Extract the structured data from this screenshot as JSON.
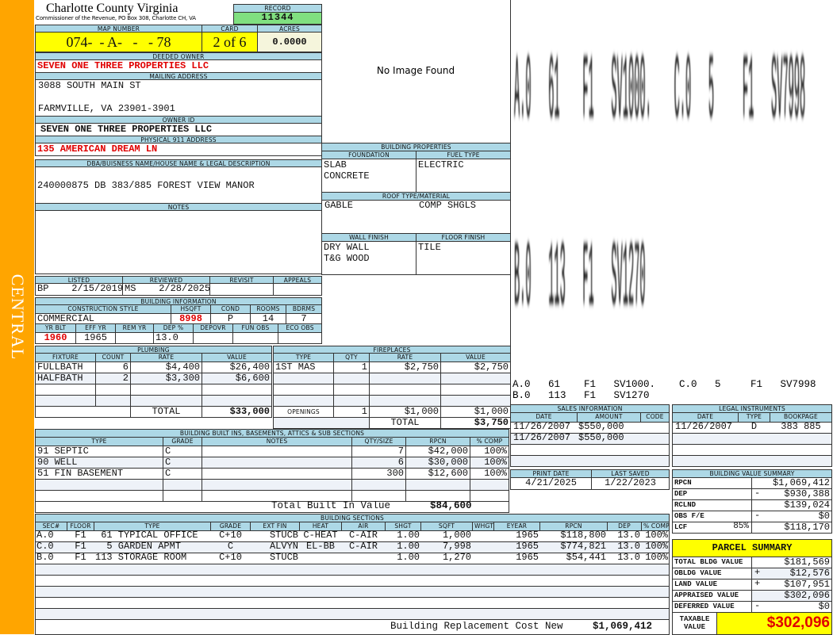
{
  "sidebar": {
    "label": "CENTRAL"
  },
  "header": {
    "county": "Charlotte County Virginia",
    "subtitle": "Commissioner of the Revenue, PO Box 308, Charlotte CH, VA",
    "record_label": "RECORD",
    "record": "11344"
  },
  "parcel": {
    "map_label": "MAP NUMBER",
    "map": "074-  - A-   -   - 78",
    "card_label": "CARD",
    "card": "2 of 6",
    "acres_label": "ACRES",
    "acres": "0.0000"
  },
  "owner": {
    "deeded_label": "DEEDED OWNER",
    "deeded": "SEVEN ONE THREE PROPERTIES LLC",
    "mailing_label": "MAILING ADDRESS",
    "mailing_line1": "3088 SOUTH MAIN ST",
    "mailing_line2": "FARMVILLE, VA 23901-3901",
    "owner_id_label": "OWNER ID",
    "owner_id": "SEVEN ONE THREE PROPERTIES LLC",
    "address_label": "PHYSICAL 911 ADDRESS",
    "address": "135 AMERICAN DREAM LN"
  },
  "legal": {
    "label": "DBA/BUISNESS NAME/HOUSE NAME & LEGAL DESCRIPTION",
    "text": "240000875 DB 383/885 FOREST VIEW MANOR"
  },
  "notes": {
    "label": "NOTES"
  },
  "image": {
    "placeholder": "No Image Found"
  },
  "review": {
    "headers": [
      "LISTED",
      "REVIEWED",
      "REVISIT",
      "APPEALS"
    ],
    "values": [
      "BP    2/15/2019",
      "MS    2/28/2025",
      "",
      ""
    ]
  },
  "building_info": {
    "label": "BUILDING INFORMATION",
    "headers1": [
      "CONSTRUCTION STYLE",
      "HSQFT",
      "COND",
      "ROOMS",
      "BDRMS"
    ],
    "values1": [
      "COMMERCIAL",
      "8998",
      "P",
      "14",
      "7"
    ],
    "headers2": [
      "YR BLT",
      "EFF YR",
      "REM YR",
      "DEP %",
      "DEPOVR",
      "FUN OBS",
      "ECO OBS"
    ],
    "values2": [
      "1960",
      "1965",
      "",
      "13.0",
      "",
      "",
      ""
    ]
  },
  "building_properties": {
    "label": "BUILDING PROPERTIES",
    "foundation_label": "FOUNDATION",
    "foundation": "SLAB\nCONCRETE",
    "fuel_label": "FUEL TYPE",
    "fuel": "ELECTRIC",
    "roof_label": "ROOF TYPE/MATERIAL",
    "roof_type": "GABLE",
    "roof_material": "COMP SHGLS",
    "wall_label": "WALL FINISH",
    "wall": "DRY WALL\nT&G WOOD",
    "floor_label": "FLOOR FINISH",
    "floor": "TILE"
  },
  "plumbing": {
    "label": "PLUMBING",
    "headers": [
      "FIXTURE",
      "COUNT",
      "RATE",
      "VALUE"
    ],
    "rows": [
      [
        "FULLBATH",
        "6",
        "$4,400",
        "$26,400"
      ],
      [
        "HALFBATH",
        "2",
        "$3,300",
        "$6,600"
      ]
    ],
    "total_label": "TOTAL",
    "total": "$33,000"
  },
  "fireplaces": {
    "label": "FIREPLACES",
    "headers": [
      "TYPE",
      "QTY",
      "RATE",
      "VALUE"
    ],
    "rows": [
      [
        "1ST MAS",
        "1",
        "$2,750",
        "$2,750"
      ]
    ],
    "openings": [
      "OPENINGS",
      "1",
      "$1,000",
      "$1,000"
    ],
    "total_label": "TOTAL",
    "total": "$3,750"
  },
  "sketch": {
    "lines": [
      "A.0   61    F1   SV1000.    C.0   5     F1   SV7998",
      "B.0   113   F1   SV1270"
    ]
  },
  "sales": {
    "label": "SALES INFORMATION",
    "headers": [
      "DATE",
      "AMOUNT",
      "CODE"
    ],
    "rows": [
      [
        "11/26/2007",
        "$550,000",
        ""
      ],
      [
        "11/26/2007",
        "$550,000",
        ""
      ]
    ]
  },
  "legal_instruments": {
    "label": "LEGAL INSTRUMENTS",
    "headers": [
      "DATE",
      "TYPE",
      "BOOKPAGE"
    ],
    "rows": [
      [
        "11/26/2007",
        "D",
        "383 885"
      ]
    ]
  },
  "dates": {
    "print_label": "PRINT DATE",
    "print": "4/21/2025",
    "saved_label": "LAST SAVED",
    "saved": "1/22/2023"
  },
  "value_summary": {
    "label": "BUILDING VALUE SUMMARY",
    "rows": [
      {
        "label": "RPCN",
        "extra": "",
        "sign": "",
        "value": "$1,069,412"
      },
      {
        "label": "DEP",
        "extra": "",
        "sign": "-",
        "value": "$930,388"
      },
      {
        "label": "RCLND",
        "extra": "",
        "sign": "",
        "value": "$139,024"
      },
      {
        "label": "OBS F/E",
        "extra": "",
        "sign": "-",
        "value": "$0"
      },
      {
        "label": "LCF",
        "extra": "85%",
        "sign": "",
        "value": "$118,170"
      }
    ]
  },
  "parcel_summary": {
    "label": "PARCEL SUMMARY",
    "rows": [
      {
        "label": "TOTAL BLDG VALUE",
        "sign": "",
        "value": "$181,569"
      },
      {
        "label": "OBLDG VALUE",
        "sign": "+",
        "value": "$12,576"
      },
      {
        "label": "LAND VALUE",
        "sign": "+",
        "value": "$107,951"
      },
      {
        "label": "APPRAISED VALUE",
        "sign": "",
        "value": "$302,096"
      },
      {
        "label": "DEFERRED VALUE",
        "sign": "-",
        "value": "$0"
      }
    ],
    "taxable_label": "TAXABLE\nVALUE",
    "taxable": "$302,096"
  },
  "built_ins": {
    "label": "BUILDING BUILT INS, BASEMENTS, ATTICS & SUB SECTIONS",
    "headers": [
      "TYPE",
      "GRADE",
      "NOTES",
      "QTY/SIZE",
      "RPCN",
      "% COMP"
    ],
    "rows": [
      [
        "91 SEPTIC",
        "C",
        "",
        "7",
        "$42,000",
        "100%"
      ],
      [
        "90 WELL",
        "C",
        "",
        "6",
        "$30,000",
        "100%"
      ],
      [
        "51 FIN BASEMENT",
        "C",
        "",
        "300",
        "$12,600",
        "100%"
      ]
    ],
    "total_label": "Total Built In Value",
    "total": "$84,600"
  },
  "sections": {
    "label": "BUILDING SECTIONS",
    "headers": [
      "SEC#",
      "FLOOR",
      "TYPE",
      "GRADE",
      "EXT FIN",
      "HEAT",
      "AIR",
      "SHGT",
      "SQFT",
      "WHGT",
      "EYEAR",
      "RPCN",
      "DEP",
      "% COMP"
    ],
    "rows": [
      [
        "A.0",
        "F1",
        " 61 TYPICAL OFFICE",
        "C+10",
        "STUCB",
        "C-HEAT",
        "C-AIR",
        "1.00",
        "1,000",
        "",
        "1965",
        "$118,800",
        "13.0",
        "100%"
      ],
      [
        "C.0",
        "F1",
        "  5 GARDEN APMT",
        "C",
        "ALVYN",
        "EL-BB",
        "C-AIR",
        "1.00",
        "7,998",
        "",
        "1965",
        "$774,821",
        "13.0",
        "100%"
      ],
      [
        "B.0",
        "F1",
        "113 STORAGE ROOM",
        "C+10",
        "STUCB",
        "",
        "",
        "1.00",
        "1,270",
        "",
        "1965",
        "$54,441",
        "13.0",
        "100%"
      ]
    ],
    "replacement_label": "Building Replacement Cost New",
    "replacement": "$1,069,412"
  },
  "colors": {
    "sidebar": "#FFA500",
    "header": "#ADD8E6",
    "record": "#80E080",
    "highlight": "#FFFF00",
    "red": "#E00000"
  }
}
